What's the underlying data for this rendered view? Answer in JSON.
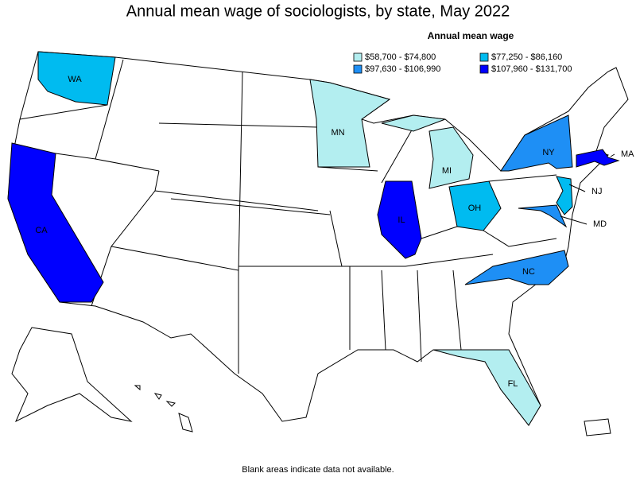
{
  "title": "Annual mean wage of sociologists, by state, May 2022",
  "legend": {
    "title": "Annual mean wage",
    "bins": [
      {
        "label": "$58,700 - $74,800",
        "color": "#b3eef0",
        "states": [
          "MN",
          "MI",
          "FL"
        ]
      },
      {
        "label": "$77,250 - $86,160",
        "color": "#00bbf0",
        "states": [
          "WA",
          "OH",
          "NJ"
        ]
      },
      {
        "label": "$97,630 - $106,990",
        "color": "#1e8ff5",
        "states": [
          "NY",
          "NC",
          "MD"
        ]
      },
      {
        "label": "$107,960 - $131,700",
        "color": "#0000ff",
        "states": [
          "CA",
          "IL",
          "MA"
        ]
      }
    ]
  },
  "footnote": "Blank areas indicate data not available."
}
